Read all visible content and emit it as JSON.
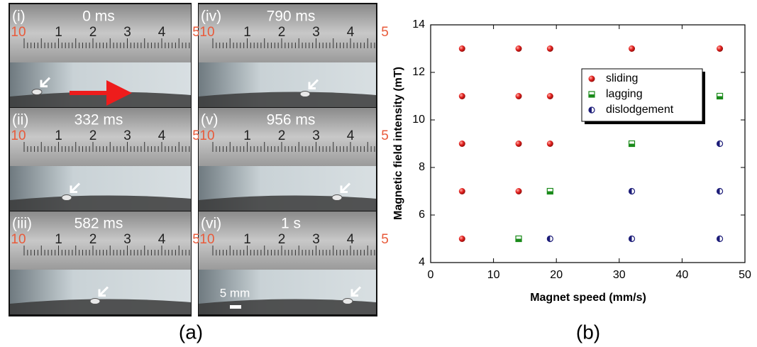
{
  "figure_a": {
    "panels": [
      {
        "label": "(i)",
        "time": "0 ms"
      },
      {
        "label": "(ii)",
        "time": "332 ms"
      },
      {
        "label": "(iii)",
        "time": "582 ms"
      },
      {
        "label": "(iv)",
        "time": "790 ms"
      },
      {
        "label": "(v)",
        "time": "956 ms"
      },
      {
        "label": "(vi)",
        "time": "1 s"
      }
    ],
    "ruler_labels": [
      "10",
      "1",
      "2",
      "3",
      "4",
      "5"
    ],
    "scale_bar": "5 mm",
    "caption": "(a)"
  },
  "chart_data": {
    "type": "scatter",
    "caption": "(b)",
    "x_label": "Magnet speed (mm/s)",
    "y_label": "Magnetic field intensity (mT)",
    "xlim": [
      0,
      50
    ],
    "ylim": [
      4,
      14
    ],
    "xticks": [
      0,
      10,
      20,
      30,
      40,
      50
    ],
    "yticks": [
      4,
      6,
      8,
      10,
      12,
      14
    ],
    "series": [
      {
        "name": "sliding",
        "color": "#e3201e",
        "marker": "circle",
        "x": [
          5,
          14,
          19,
          32,
          46,
          5,
          14,
          19,
          32,
          5,
          14,
          19,
          5,
          14,
          5
        ],
        "values": [
          13,
          13,
          13,
          13,
          13,
          11,
          11,
          11,
          11,
          9,
          9,
          9,
          7,
          7,
          5
        ]
      },
      {
        "name": "lagging",
        "color": "#1a8a1a",
        "marker": "square",
        "x": [
          46,
          32,
          19,
          14
        ],
        "values": [
          11,
          9,
          7,
          5
        ]
      },
      {
        "name": "dislodgement",
        "color": "#1c1c78",
        "marker": "half-circle",
        "x": [
          46,
          32,
          46,
          19,
          32,
          46
        ],
        "values": [
          9,
          7,
          7,
          5,
          5,
          5
        ]
      }
    ]
  }
}
